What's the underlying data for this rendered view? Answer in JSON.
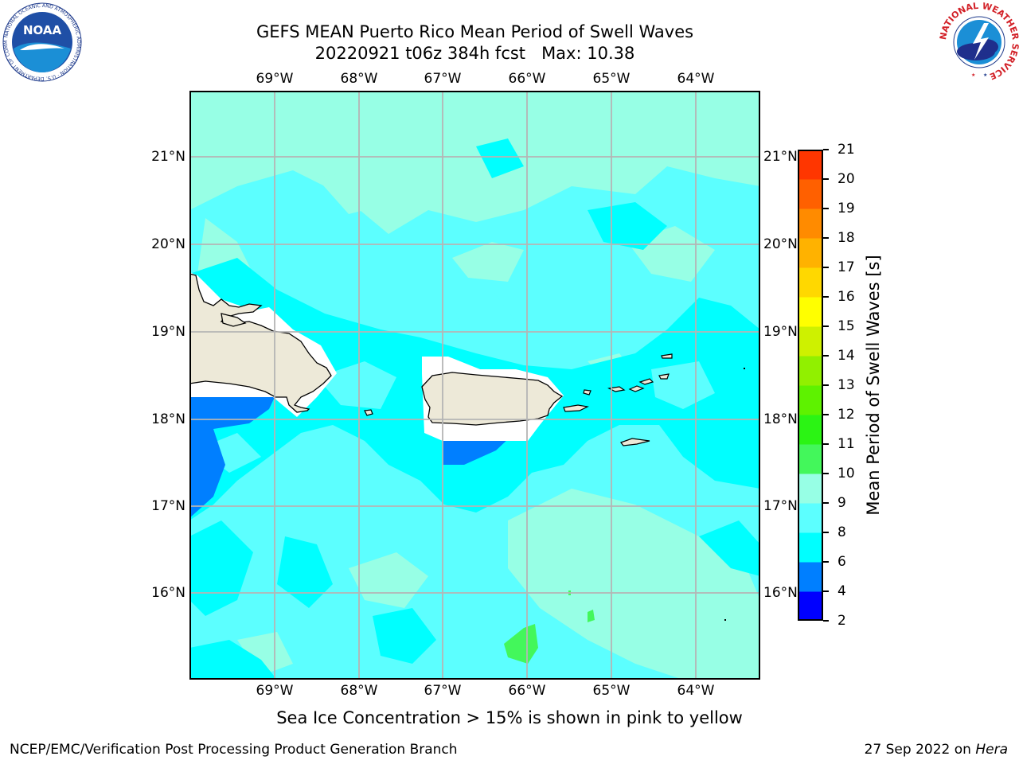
{
  "title": {
    "line1": "GEFS MEAN Puerto Rico Mean Period of Swell Waves",
    "line2": "20220921 t06z 384h fcst   Max: 10.38"
  },
  "lon_labels": [
    "69°W",
    "68°W",
    "67°W",
    "66°W",
    "65°W",
    "64°W"
  ],
  "lat_labels": [
    "21°N",
    "20°N",
    "19°N",
    "18°N",
    "17°N",
    "16°N"
  ],
  "colorbar": {
    "label": "Mean Period of Swell Waves [s]",
    "ticks": [
      "2",
      "4",
      "6",
      "8",
      "9",
      "10",
      "11",
      "12",
      "13",
      "14",
      "15",
      "16",
      "17",
      "18",
      "19",
      "20",
      "21"
    ],
    "colors": [
      "#0000ff",
      "#007fff",
      "#00ffff",
      "#5cffff",
      "#97ffe5",
      "#43f75b",
      "#2bf414",
      "#5ef200",
      "#91f000",
      "#cef100",
      "#ffff00",
      "#ffd800",
      "#ffb200",
      "#ff8b00",
      "#ff6000",
      "#ff3600",
      "#ff0000"
    ]
  },
  "note": "Sea Ice Concentration > 15% is shown in pink to yellow",
  "footer": {
    "left": "NCEP/EMC/Verification Post Processing Product Generation Branch",
    "right_date": "27 Sep 2022 on ",
    "right_host": "Hera"
  },
  "logos": {
    "noaa": "NOAA",
    "noaa_ring": "NATIONAL OCEANIC AND ATMOSPHERIC ADMINISTRATION · U.S. DEPARTMENT OF COMMERCE",
    "nws_ring": "NATIONAL WEATHER SERVICE"
  }
}
